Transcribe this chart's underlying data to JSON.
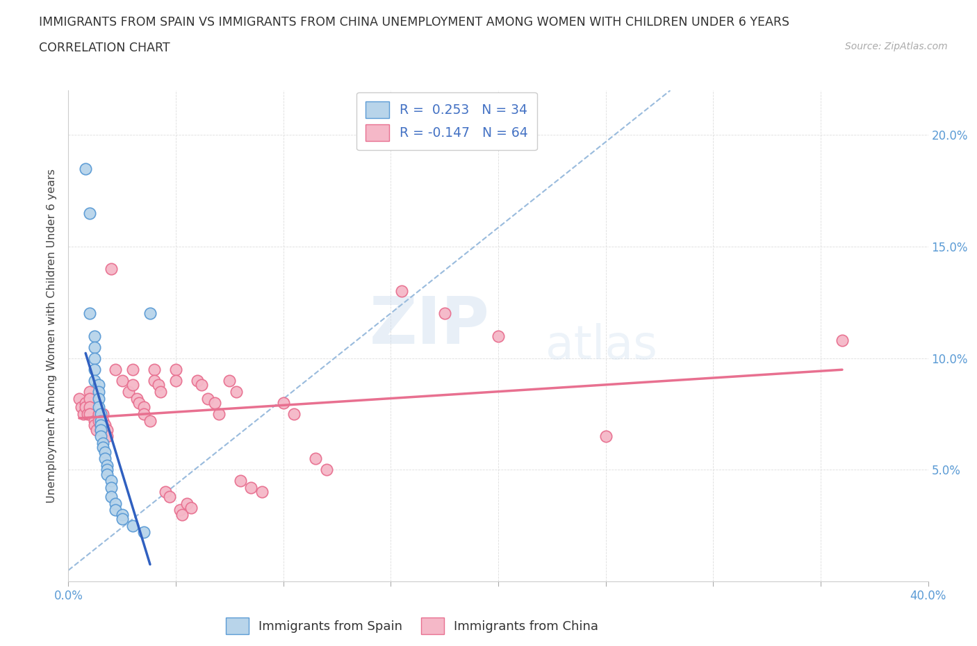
{
  "title_line1": "IMMIGRANTS FROM SPAIN VS IMMIGRANTS FROM CHINA UNEMPLOYMENT AMONG WOMEN WITH CHILDREN UNDER 6 YEARS",
  "title_line2": "CORRELATION CHART",
  "source_text": "Source: ZipAtlas.com",
  "ylabel": "Unemployment Among Women with Children Under 6 years",
  "xlim": [
    0.0,
    0.4
  ],
  "ylim": [
    0.0,
    0.22
  ],
  "x_ticks": [
    0.0,
    0.05,
    0.1,
    0.15,
    0.2,
    0.25,
    0.3,
    0.35,
    0.4
  ],
  "x_label_ticks": [
    0.0,
    0.4
  ],
  "x_tick_labels_edge": [
    "0.0%",
    "40.0%"
  ],
  "y_ticks": [
    0.05,
    0.1,
    0.15,
    0.2
  ],
  "y_tick_labels": [
    "5.0%",
    "10.0%",
    "15.0%",
    "20.0%"
  ],
  "spain_color": "#b8d4ea",
  "china_color": "#f5b8c8",
  "spain_edge": "#5b9bd5",
  "china_edge": "#e87090",
  "trendline_spain_color": "#3060c0",
  "trendline_china_color": "#e87090",
  "trendline_dashed_color": "#99bbdd",
  "R_spain": 0.253,
  "N_spain": 34,
  "R_china": -0.147,
  "N_china": 64,
  "legend_label_spain": "Immigrants from Spain",
  "legend_label_china": "Immigrants from China",
  "watermark_top": "ZIP",
  "watermark_bot": "atlas",
  "spain_points": [
    [
      0.008,
      0.185
    ],
    [
      0.01,
      0.165
    ],
    [
      0.01,
      0.12
    ],
    [
      0.012,
      0.11
    ],
    [
      0.012,
      0.105
    ],
    [
      0.012,
      0.1
    ],
    [
      0.012,
      0.095
    ],
    [
      0.012,
      0.09
    ],
    [
      0.014,
      0.088
    ],
    [
      0.014,
      0.085
    ],
    [
      0.014,
      0.082
    ],
    [
      0.014,
      0.078
    ],
    [
      0.015,
      0.075
    ],
    [
      0.015,
      0.072
    ],
    [
      0.015,
      0.07
    ],
    [
      0.015,
      0.068
    ],
    [
      0.015,
      0.065
    ],
    [
      0.016,
      0.062
    ],
    [
      0.016,
      0.06
    ],
    [
      0.017,
      0.058
    ],
    [
      0.017,
      0.055
    ],
    [
      0.018,
      0.052
    ],
    [
      0.018,
      0.05
    ],
    [
      0.018,
      0.048
    ],
    [
      0.02,
      0.045
    ],
    [
      0.02,
      0.042
    ],
    [
      0.02,
      0.038
    ],
    [
      0.022,
      0.035
    ],
    [
      0.022,
      0.032
    ],
    [
      0.025,
      0.03
    ],
    [
      0.025,
      0.028
    ],
    [
      0.03,
      0.025
    ],
    [
      0.035,
      0.022
    ],
    [
      0.038,
      0.12
    ]
  ],
  "china_points": [
    [
      0.005,
      0.082
    ],
    [
      0.006,
      0.078
    ],
    [
      0.007,
      0.075
    ],
    [
      0.008,
      0.08
    ],
    [
      0.008,
      0.078
    ],
    [
      0.009,
      0.075
    ],
    [
      0.01,
      0.085
    ],
    [
      0.01,
      0.082
    ],
    [
      0.01,
      0.078
    ],
    [
      0.01,
      0.075
    ],
    [
      0.012,
      0.072
    ],
    [
      0.012,
      0.07
    ],
    [
      0.013,
      0.068
    ],
    [
      0.014,
      0.075
    ],
    [
      0.014,
      0.072
    ],
    [
      0.015,
      0.07
    ],
    [
      0.015,
      0.068
    ],
    [
      0.016,
      0.075
    ],
    [
      0.016,
      0.072
    ],
    [
      0.017,
      0.07
    ],
    [
      0.018,
      0.068
    ],
    [
      0.018,
      0.065
    ],
    [
      0.02,
      0.14
    ],
    [
      0.022,
      0.095
    ],
    [
      0.025,
      0.09
    ],
    [
      0.028,
      0.085
    ],
    [
      0.03,
      0.095
    ],
    [
      0.03,
      0.088
    ],
    [
      0.032,
      0.082
    ],
    [
      0.033,
      0.08
    ],
    [
      0.035,
      0.078
    ],
    [
      0.035,
      0.075
    ],
    [
      0.038,
      0.072
    ],
    [
      0.04,
      0.095
    ],
    [
      0.04,
      0.09
    ],
    [
      0.042,
      0.088
    ],
    [
      0.043,
      0.085
    ],
    [
      0.045,
      0.04
    ],
    [
      0.047,
      0.038
    ],
    [
      0.05,
      0.095
    ],
    [
      0.05,
      0.09
    ],
    [
      0.052,
      0.032
    ],
    [
      0.053,
      0.03
    ],
    [
      0.055,
      0.035
    ],
    [
      0.057,
      0.033
    ],
    [
      0.06,
      0.09
    ],
    [
      0.062,
      0.088
    ],
    [
      0.065,
      0.082
    ],
    [
      0.068,
      0.08
    ],
    [
      0.07,
      0.075
    ],
    [
      0.075,
      0.09
    ],
    [
      0.078,
      0.085
    ],
    [
      0.08,
      0.045
    ],
    [
      0.085,
      0.042
    ],
    [
      0.09,
      0.04
    ],
    [
      0.1,
      0.08
    ],
    [
      0.105,
      0.075
    ],
    [
      0.115,
      0.055
    ],
    [
      0.12,
      0.05
    ],
    [
      0.155,
      0.13
    ],
    [
      0.175,
      0.12
    ],
    [
      0.2,
      0.11
    ],
    [
      0.25,
      0.065
    ],
    [
      0.36,
      0.108
    ]
  ]
}
